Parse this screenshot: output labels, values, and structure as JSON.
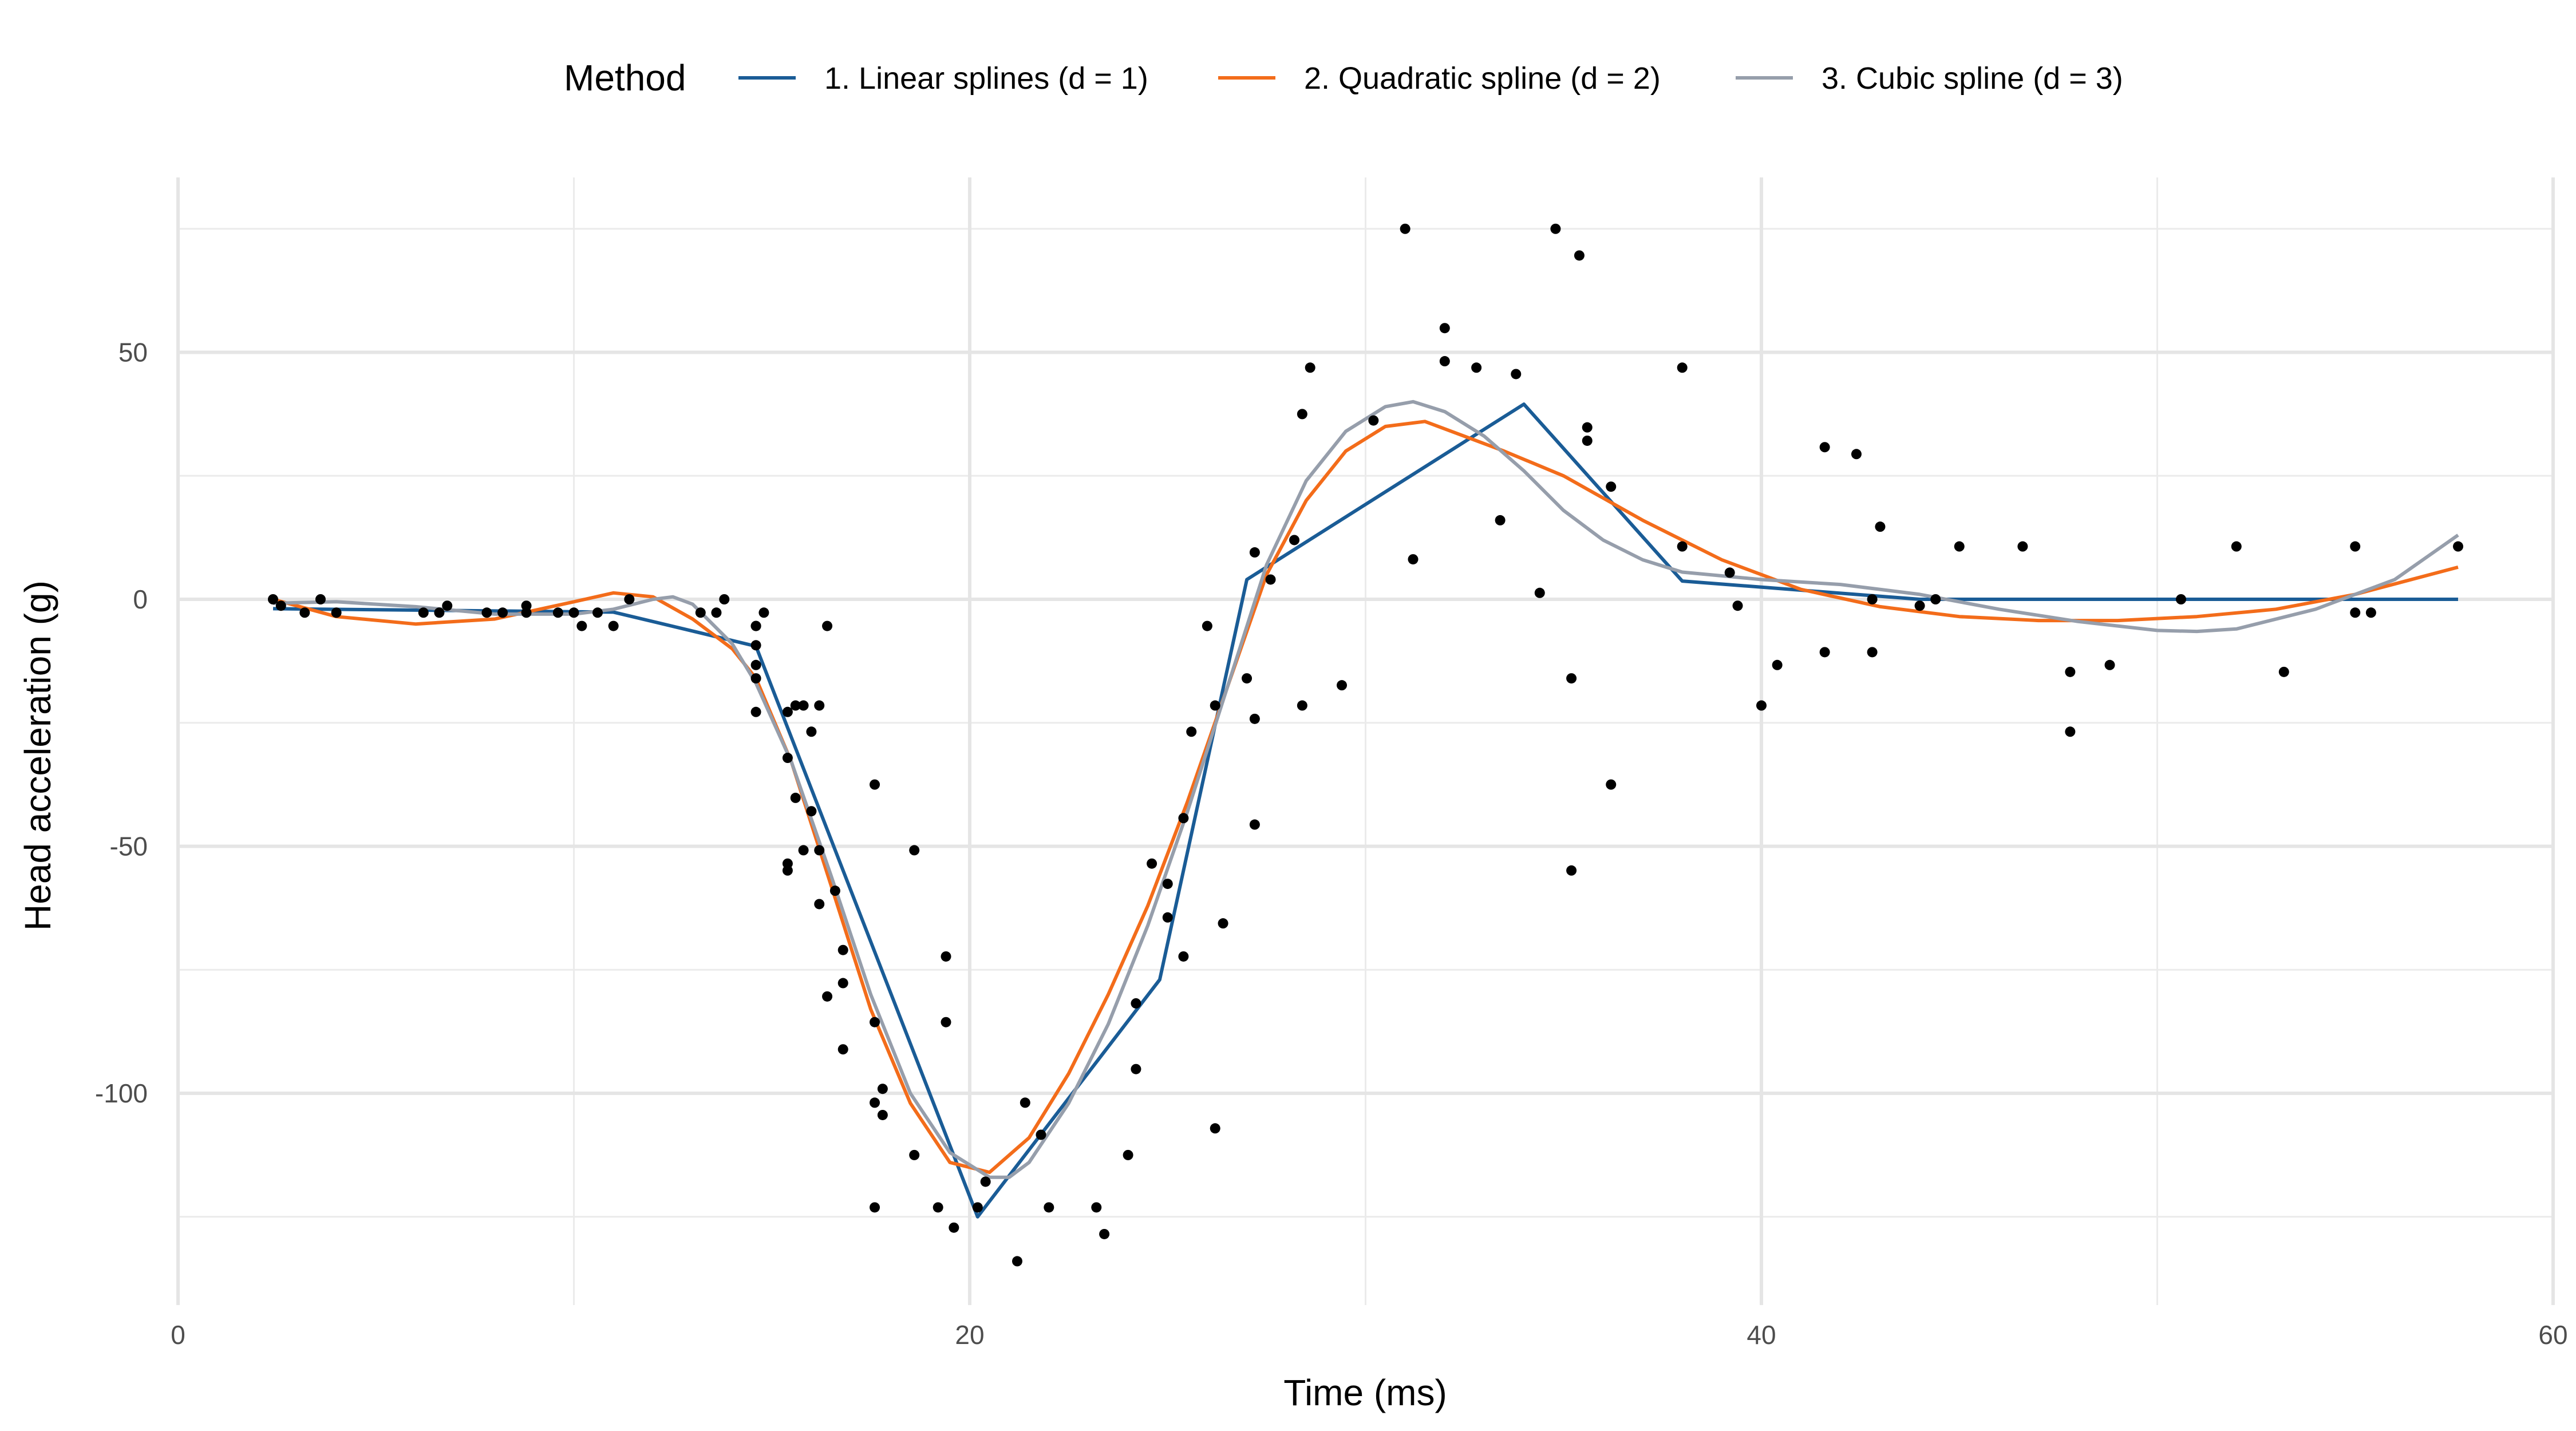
{
  "chart_data": {
    "type": "scatter",
    "title": "",
    "xlabel": "Time (ms)",
    "ylabel": "Head acceleration (g)",
    "xlim": [
      0,
      60
    ],
    "ylim": [
      -143,
      85
    ],
    "xticks": [
      0,
      20,
      40,
      60
    ],
    "yticks": [
      50,
      0,
      -50,
      -100
    ],
    "ytick_labels": [
      "50",
      "0",
      "-50",
      "-100"
    ],
    "xtick_labels": [
      "0",
      "20",
      "40",
      "60"
    ],
    "grid": true,
    "legend": {
      "title": "Method",
      "position": "top",
      "entries": [
        {
          "label": "1. Linear splines (d = 1)",
          "color": "#1a5c96"
        },
        {
          "label": "2. Quadratic spline (d = 2)",
          "color": "#f36c1a"
        },
        {
          "label": "3. Cubic spline (d = 3)",
          "color": "#969eab"
        }
      ]
    },
    "points": {
      "x": [
        2.4,
        2.6,
        3.2,
        3.6,
        4.0,
        6.2,
        6.6,
        6.8,
        7.8,
        8.2,
        8.8,
        8.8,
        9.6,
        10.0,
        10.2,
        10.6,
        11.0,
        11.4,
        13.2,
        13.6,
        13.8,
        14.6,
        14.6,
        14.6,
        14.6,
        14.6,
        14.6,
        14.8,
        15.4,
        15.4,
        15.4,
        15.4,
        15.6,
        15.6,
        15.8,
        15.8,
        16.0,
        16.0,
        16.2,
        16.2,
        16.2,
        16.4,
        16.4,
        16.6,
        16.8,
        16.8,
        16.8,
        17.6,
        17.6,
        17.6,
        17.6,
        17.8,
        17.8,
        18.6,
        18.6,
        19.2,
        19.4,
        19.4,
        19.6,
        20.2,
        20.4,
        21.2,
        21.4,
        21.8,
        22.0,
        23.2,
        23.4,
        24.0,
        24.2,
        24.2,
        24.6,
        25.0,
        25.0,
        25.4,
        25.4,
        25.6,
        26.0,
        26.2,
        26.2,
        26.4,
        27.0,
        27.2,
        27.2,
        27.2,
        27.6,
        28.2,
        28.4,
        28.4,
        28.6,
        29.4,
        30.2,
        31.0,
        31.2,
        32.0,
        32.0,
        32.8,
        33.4,
        33.8,
        34.4,
        34.8,
        35.2,
        35.2,
        35.4,
        35.6,
        35.6,
        36.2,
        36.2,
        38.0,
        38.0,
        39.2,
        39.4,
        40.0,
        40.4,
        41.6,
        41.6,
        42.4,
        42.8,
        42.8,
        43.0,
        44.0,
        44.4,
        45.0,
        46.6,
        47.8,
        47.8,
        48.8,
        50.6,
        52.0,
        53.2,
        55.0,
        55.0,
        55.4,
        57.6
      ],
      "y": [
        0.0,
        -1.3,
        -2.7,
        0.0,
        -2.7,
        -2.7,
        -2.7,
        -1.3,
        -2.7,
        -2.7,
        -1.3,
        -2.7,
        -2.7,
        -2.7,
        -5.4,
        -2.7,
        -5.4,
        0.0,
        -2.7,
        -2.7,
        0.0,
        -13.3,
        -5.4,
        -5.4,
        -9.3,
        -16.0,
        -22.8,
        -2.7,
        -22.8,
        -32.1,
        -53.5,
        -54.9,
        -40.2,
        -21.5,
        -21.5,
        -50.8,
        -42.9,
        -26.8,
        -21.5,
        -50.8,
        -61.7,
        -5.4,
        -80.4,
        -59.0,
        -71.0,
        -91.1,
        -77.7,
        -37.5,
        -85.6,
        -123.1,
        -101.9,
        -99.1,
        -104.4,
        -112.5,
        -50.8,
        -123.1,
        -85.6,
        -72.3,
        -127.2,
        -123.1,
        -117.9,
        -134.0,
        -101.9,
        -108.4,
        -123.1,
        -123.1,
        -128.5,
        -112.5,
        -95.1,
        -81.8,
        -53.5,
        -64.4,
        -57.6,
        -72.3,
        -44.3,
        -26.8,
        -5.4,
        -107.1,
        -21.5,
        -65.6,
        -16.0,
        -45.6,
        -24.2,
        9.5,
        4.0,
        12.0,
        -21.5,
        37.5,
        46.9,
        -17.4,
        36.2,
        75.0,
        8.1,
        54.9,
        48.2,
        46.9,
        16.0,
        45.6,
        1.3,
        75.0,
        -16.0,
        -54.9,
        69.6,
        34.8,
        32.1,
        -37.5,
        22.8,
        46.9,
        10.7,
        5.4,
        -1.3,
        -21.5,
        -13.3,
        30.8,
        -10.7,
        29.4,
        0.0,
        -10.7,
        14.7,
        -1.3,
        0.0,
        10.7,
        10.7,
        -26.8,
        -14.7,
        -13.3,
        0.0,
        10.7,
        -14.7,
        -2.7,
        10.7,
        -2.7,
        10.7
      ]
    },
    "series": [
      {
        "name": "1. Linear splines (d = 1)",
        "x": [
          2.4,
          11.0,
          14.6,
          20.2,
          24.8,
          27.0,
          34.0,
          38.0,
          44.0,
          57.6
        ],
        "y": [
          -1.9,
          -2.6,
          -9.5,
          -125,
          -77,
          4,
          39.5,
          3.7,
          0,
          0
        ]
      },
      {
        "name": "2. Quadratic spline (d = 2)",
        "x": [
          2.4,
          4,
          6,
          8,
          10,
          11,
          12,
          13,
          14,
          14.6,
          15.5,
          16.5,
          17.5,
          18.5,
          19.5,
          20.5,
          21.5,
          22.5,
          23.5,
          24.5,
          25.5,
          26.5,
          27.5,
          28.5,
          29.5,
          30.5,
          31.5,
          32.5,
          33.5,
          35,
          37,
          39,
          41,
          43,
          45,
          47,
          49,
          51,
          53,
          55,
          57.6
        ],
        "y": [
          0,
          -3.5,
          -5,
          -4,
          -0.5,
          1.3,
          0.5,
          -4,
          -10,
          -16,
          -33,
          -58,
          -83,
          -102,
          -114,
          -116,
          -109,
          -96,
          -80,
          -62,
          -41,
          -18,
          5,
          20,
          30,
          35,
          36,
          33,
          30,
          25,
          16,
          8,
          2,
          -1.5,
          -3.5,
          -4.3,
          -4.3,
          -3.5,
          -2,
          1,
          6.5
        ]
      },
      {
        "name": "3. Cubic spline (d = 3)",
        "x": [
          2.4,
          4,
          6,
          8,
          10,
          11,
          12,
          12.5,
          13,
          14,
          14.6,
          15.5,
          16.5,
          17.5,
          18.5,
          19.5,
          20.5,
          21,
          21.5,
          22.5,
          23.5,
          24.5,
          25.5,
          26.5,
          27.5,
          28.5,
          29.5,
          30.5,
          31.2,
          32,
          33,
          34,
          35,
          36,
          37,
          38,
          40,
          42,
          44,
          46,
          48,
          50,
          51,
          52,
          54,
          56,
          57.6
        ],
        "y": [
          -0.8,
          -0.5,
          -1.5,
          -3,
          -3,
          -2,
          0,
          0.5,
          -1,
          -9,
          -17,
          -33,
          -56,
          -80,
          -100,
          -112,
          -117,
          -117,
          -114,
          -102,
          -86,
          -66,
          -43,
          -18,
          7,
          24,
          34,
          39,
          40,
          38,
          33,
          26,
          18,
          12,
          8,
          5.5,
          4,
          3,
          1,
          -2,
          -4.5,
          -6.3,
          -6.5,
          -6,
          -2,
          4,
          13
        ]
      }
    ]
  }
}
